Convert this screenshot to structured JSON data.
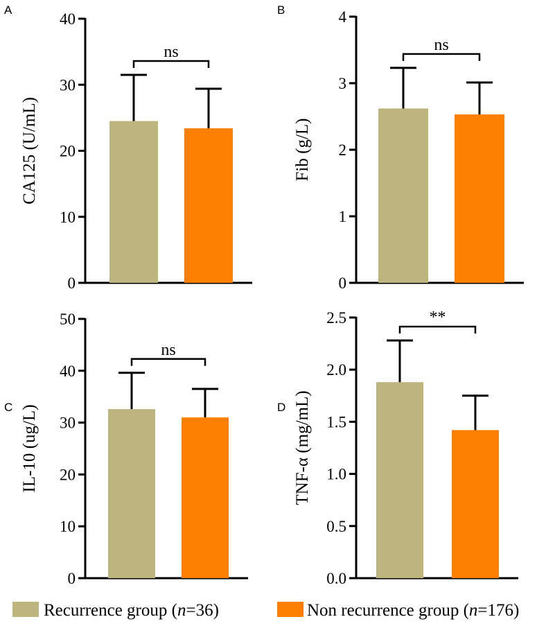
{
  "colors": {
    "recurrence": "#bdb47e",
    "non_recurrence": "#ff8000",
    "axis": "#000000"
  },
  "legend": [
    {
      "label_main": "Recurrence group (",
      "label_italic": "n",
      "label_tail": "=36)"
    },
    {
      "label_main": "Non recurrence group (",
      "label_italic": "n",
      "label_tail": "=176)"
    }
  ],
  "chart_data": [
    {
      "panel": "A",
      "type": "bar",
      "ylabel": "CA125 (U/mL)",
      "ylim": [
        0,
        40
      ],
      "yticks": [
        "0",
        "10",
        "20",
        "30",
        "40"
      ],
      "yticks_values": [
        0,
        10,
        20,
        30,
        40
      ],
      "categories": [
        "Recurrence group",
        "Non recurrence group"
      ],
      "values": [
        24.5,
        23.4
      ],
      "errors": [
        7.0,
        6.0
      ],
      "significance": "ns"
    },
    {
      "panel": "B",
      "type": "bar",
      "ylabel": "Fib (g/L)",
      "ylim": [
        0,
        4
      ],
      "yticks": [
        "0",
        "1",
        "2",
        "3",
        "4"
      ],
      "yticks_values": [
        0,
        1,
        2,
        3,
        4
      ],
      "categories": [
        "Recurrence group",
        "Non recurrence group"
      ],
      "values": [
        2.62,
        2.53
      ],
      "errors": [
        0.61,
        0.48
      ],
      "significance": "ns"
    },
    {
      "panel": "C",
      "type": "bar",
      "ylabel": "IL-10 (ug/L)",
      "ylim": [
        0,
        50
      ],
      "yticks": [
        "0",
        "10",
        "20",
        "30",
        "40",
        "50"
      ],
      "yticks_values": [
        0,
        10,
        20,
        30,
        40,
        50
      ],
      "categories": [
        "Recurrence group",
        "Non recurrence group"
      ],
      "values": [
        32.6,
        31.0
      ],
      "errors": [
        7.0,
        5.5
      ],
      "significance": "ns"
    },
    {
      "panel": "D",
      "type": "bar",
      "ylabel": "TNF-α (mg/mL)",
      "ylim": [
        0,
        2.5
      ],
      "yticks": [
        "0.0",
        "0.5",
        "1.0",
        "1.5",
        "2.0",
        "2.5"
      ],
      "yticks_values": [
        0,
        0.5,
        1.0,
        1.5,
        2.0,
        2.5
      ],
      "categories": [
        "Recurrence group",
        "Non recurrence group"
      ],
      "values": [
        1.88,
        1.42
      ],
      "errors": [
        0.4,
        0.33
      ],
      "significance": "**"
    }
  ]
}
